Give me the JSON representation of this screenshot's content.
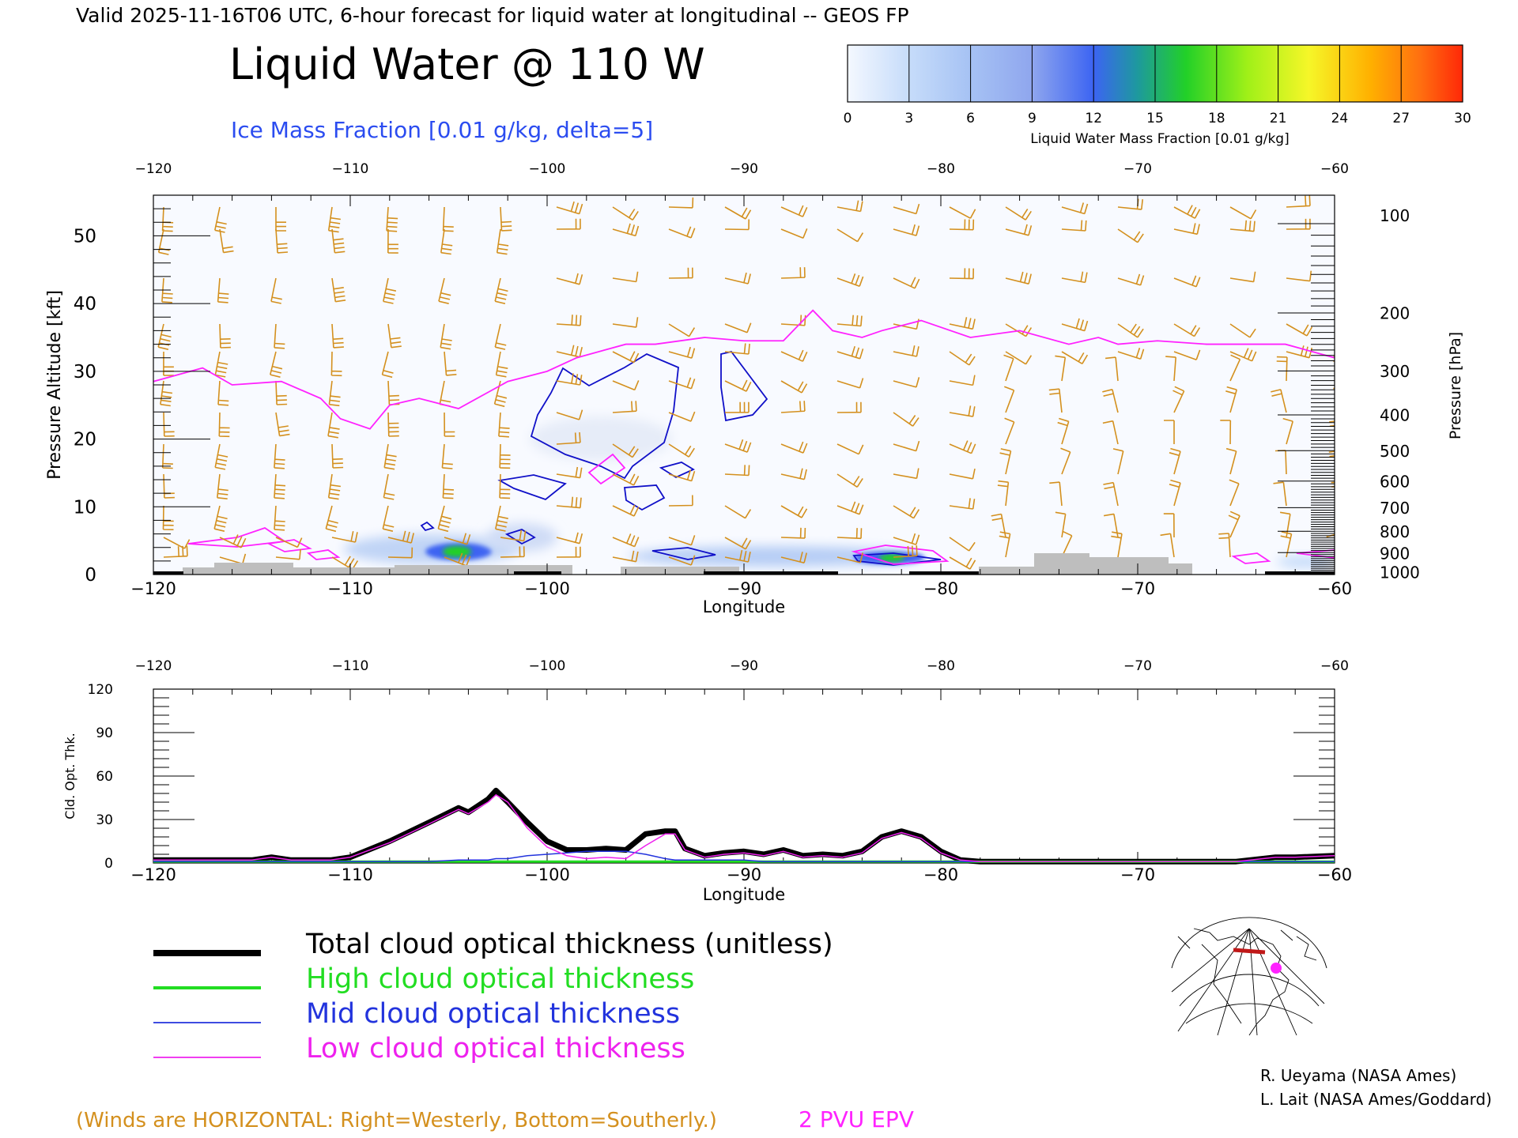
{
  "header": {
    "valid_line": "Valid 2025-11-16T06 UTC, 6-hour forecast for liquid water at longitudinal -- GEOS FP",
    "title": "Liquid Water @ 110 W",
    "ice_label": "Ice Mass Fraction [0.01 g/kg, delta=5]"
  },
  "colorbar": {
    "ticks": [
      "0",
      "3",
      "6",
      "9",
      "12",
      "15",
      "18",
      "21",
      "24",
      "27",
      "30"
    ],
    "label": "Liquid Water Mass Fraction [0.01 g/kg]",
    "colors": [
      "#f4f8ff",
      "#c6dcfa",
      "#a6c2f4",
      "#8fa6ee",
      "#3c64f2",
      "#1e98a0",
      "#22d028",
      "#a0f018",
      "#f6f628",
      "#ffb000",
      "#ff7010",
      "#ff2808"
    ]
  },
  "colors": {
    "wind_barbs": "#d4901e",
    "epv_2pvu": "#ff22ff",
    "ice_contour": "#1010c8",
    "terrain": "#bebebe",
    "text": "#000000"
  },
  "legend": {
    "items": [
      {
        "label": "Total cloud optical thickness (unitless)",
        "color": "#000000"
      },
      {
        "label": "High cloud optical thickness",
        "color": "#22dd22"
      },
      {
        "label": "Mid cloud optical thickness",
        "color": "#2233dd"
      },
      {
        "label": "Low cloud optical thickness",
        "color": "#ee22ee"
      }
    ]
  },
  "footer": {
    "winds_note": "(Winds are HORIZONTAL: Right=Westerly, Bottom=Southerly.)",
    "epv_label": "2 PVU EPV",
    "credit_1": "R. Ueyama (NASA Ames)",
    "credit_2": "L. Lait (NASA Ames/Goddard)"
  },
  "chart_data": [
    {
      "type": "heatmap",
      "title": "Liquid Water @ 110 W",
      "xlabel": "Longitude",
      "ylabel": "Pressure Altitude [kft]",
      "y2label": "Pressure [hPa]",
      "xlim": [
        -120,
        -60
      ],
      "ylim": [
        0,
        56
      ],
      "x_ticks": [
        "-120",
        "-110",
        "-100",
        "-90",
        "-80",
        "-70",
        "-60"
      ],
      "y_ticks": [
        "0",
        "10",
        "20",
        "30",
        "40",
        "50"
      ],
      "y2_ticks": [
        "100",
        "200",
        "300",
        "400",
        "500",
        "600",
        "700",
        "800",
        "900",
        "1000"
      ],
      "liquid_water_maxima": [
        {
          "lon": -104.5,
          "alt_kft": 3.5,
          "value": 16
        },
        {
          "lon": -82.5,
          "alt_kft": 2.5,
          "value": 15
        }
      ],
      "epv_2pvu_line": {
        "lon": [
          -120,
          -117.5,
          -116,
          -113.5,
          -111.5,
          -110.5,
          -109,
          -108,
          -106.5,
          -104.5,
          -102,
          -100,
          -98.5,
          -96,
          -94.5,
          -92,
          -90,
          -88,
          -86.5,
          -85.5,
          -84,
          -83,
          -81,
          -78.5,
          -76,
          -73.5,
          -72,
          -71,
          -69,
          -66.5,
          -64,
          -62.5,
          -60
        ],
        "alt_kft": [
          28.5,
          30.5,
          28,
          28.5,
          26,
          23,
          21.5,
          25,
          26,
          24.5,
          28.5,
          30,
          32,
          34,
          34,
          35,
          34.5,
          34.5,
          39,
          36,
          35,
          36,
          37.5,
          35,
          36,
          34,
          35,
          34,
          34.5,
          34,
          34,
          34,
          32
        ]
      }
    },
    {
      "type": "line",
      "xlabel": "Longitude",
      "ylabel": "Cld. Opt. Thk.",
      "xlim": [
        -120,
        -60
      ],
      "ylim": [
        0,
        120
      ],
      "x_ticks": [
        "-120",
        "-110",
        "-100",
        "-90",
        "-80",
        "-70",
        "-60"
      ],
      "y_ticks": [
        "0",
        "30",
        "60",
        "90",
        "120"
      ],
      "x": [
        -120,
        -118,
        -115,
        -114,
        -113,
        -111,
        -110,
        -108,
        -106,
        -104.5,
        -104,
        -103,
        -102.6,
        -102,
        -101,
        -100,
        -99,
        -98,
        -97,
        -96,
        -95,
        -94,
        -93.5,
        -93,
        -92,
        -91,
        -90,
        -89,
        -88,
        -87,
        -86,
        -85,
        -84,
        -83,
        -82,
        -81,
        -80,
        -79,
        -78,
        -70,
        -65,
        -63,
        -62,
        -60
      ],
      "series": [
        {
          "name": "Total cloud optical thickness (unitless)",
          "values": [
            2,
            2,
            2,
            4,
            2,
            2,
            4,
            15,
            28,
            38,
            35,
            44,
            50,
            42,
            28,
            15,
            9,
            9,
            10,
            9,
            20,
            22,
            22,
            10,
            5,
            7,
            8,
            6,
            9,
            5,
            6,
            5,
            8,
            18,
            22,
            18,
            8,
            2,
            1,
            1,
            1,
            4,
            4,
            5
          ]
        },
        {
          "name": "High cloud optical thickness",
          "values": [
            1,
            1,
            1,
            1,
            1,
            1,
            1,
            1,
            1,
            1,
            1,
            1,
            1,
            1,
            1,
            1,
            1,
            1,
            1,
            1,
            1,
            1,
            1,
            1,
            1,
            1,
            1,
            1,
            1,
            1,
            1,
            1,
            1,
            1,
            1,
            1,
            1,
            1,
            1,
            1,
            1,
            1,
            1,
            1
          ]
        },
        {
          "name": "Mid cloud optical thickness",
          "values": [
            1,
            1,
            1,
            1,
            1,
            1,
            1,
            1,
            1,
            2,
            2,
            2,
            3,
            3,
            5,
            6,
            7,
            8,
            8,
            8,
            6,
            3,
            2,
            2,
            2,
            2,
            2,
            1,
            1,
            1,
            1,
            1,
            1,
            1,
            1,
            1,
            1,
            1,
            1,
            1,
            1,
            1,
            1,
            1
          ]
        },
        {
          "name": "Low cloud optical thickness",
          "values": [
            2,
            2,
            2,
            4,
            2,
            2,
            4,
            14,
            27,
            37,
            34,
            42,
            47,
            42,
            24,
            11,
            5,
            3,
            4,
            3,
            12,
            20,
            20,
            9,
            4,
            6,
            7,
            5,
            8,
            4,
            5,
            4,
            7,
            17,
            21,
            17,
            7,
            2,
            1,
            1,
            1,
            4,
            4,
            5
          ]
        }
      ]
    }
  ]
}
